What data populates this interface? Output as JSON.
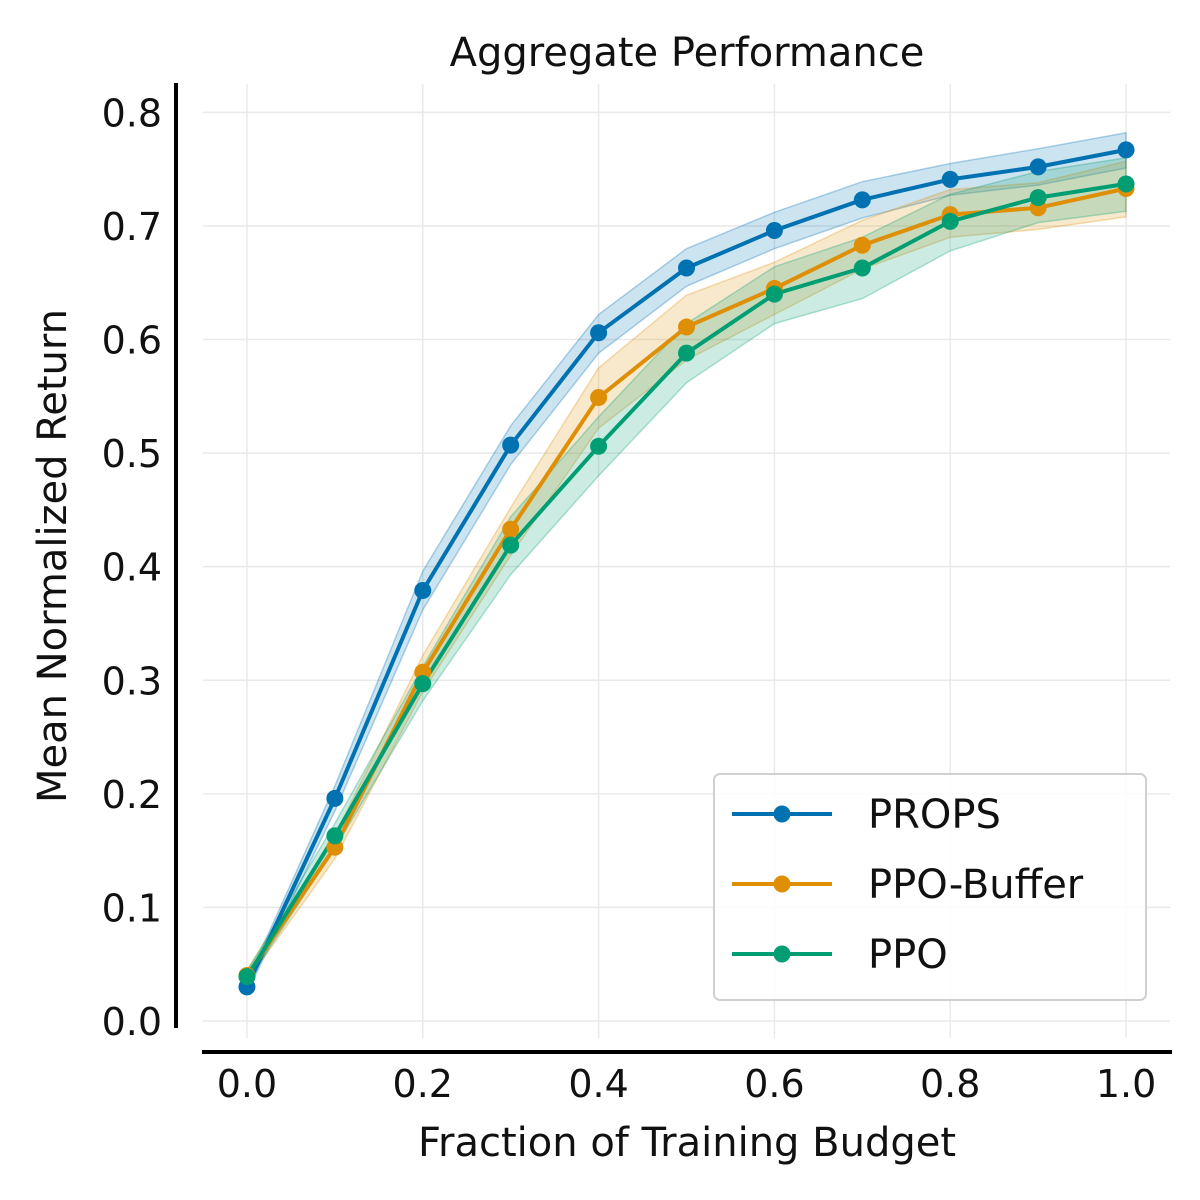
{
  "chart_data": {
    "type": "line",
    "title": "Aggregate Performance",
    "xlabel": "Fraction of Training Budget",
    "ylabel": "Mean Normalized Return",
    "xlim": [
      -0.05,
      1.05
    ],
    "ylim": [
      -0.015,
      0.825
    ],
    "xticks": [
      0.0,
      0.2,
      0.4,
      0.6,
      0.8,
      1.0
    ],
    "xtick_labels": [
      "0.0",
      "0.2",
      "0.4",
      "0.6",
      "0.8",
      "1.0"
    ],
    "yticks": [
      0.0,
      0.1,
      0.2,
      0.3,
      0.4,
      0.5,
      0.6,
      0.7,
      0.8
    ],
    "ytick_labels": [
      "0.0",
      "0.1",
      "0.2",
      "0.3",
      "0.4",
      "0.5",
      "0.6",
      "0.7",
      "0.8"
    ],
    "grid": true,
    "legend_position": "bottom-right",
    "x": [
      0.0,
      0.1,
      0.2,
      0.3,
      0.4,
      0.5,
      0.6,
      0.7,
      0.8,
      0.9,
      1.0
    ],
    "series": [
      {
        "name": "PROPS",
        "color": "#0072b2",
        "values": [
          0.03,
          0.196,
          0.379,
          0.507,
          0.606,
          0.663,
          0.696,
          0.723,
          0.741,
          0.752,
          0.767
        ],
        "lower": [
          0.025,
          0.185,
          0.362,
          0.49,
          0.588,
          0.647,
          0.68,
          0.707,
          0.727,
          0.736,
          0.751
        ],
        "upper": [
          0.035,
          0.207,
          0.396,
          0.524,
          0.622,
          0.68,
          0.712,
          0.739,
          0.755,
          0.768,
          0.782
        ]
      },
      {
        "name": "PPO-Buffer",
        "color": "#de8f05",
        "values": [
          0.04,
          0.153,
          0.307,
          0.433,
          0.549,
          0.611,
          0.645,
          0.683,
          0.71,
          0.716,
          0.733
        ],
        "lower": [
          0.035,
          0.143,
          0.29,
          0.41,
          0.522,
          0.582,
          0.622,
          0.662,
          0.69,
          0.697,
          0.708
        ],
        "upper": [
          0.045,
          0.163,
          0.322,
          0.452,
          0.575,
          0.639,
          0.668,
          0.705,
          0.732,
          0.738,
          0.757
        ]
      },
      {
        "name": "PPO",
        "color": "#029e73",
        "values": [
          0.039,
          0.163,
          0.297,
          0.419,
          0.506,
          0.588,
          0.64,
          0.663,
          0.704,
          0.725,
          0.737
        ],
        "lower": [
          0.034,
          0.152,
          0.282,
          0.393,
          0.48,
          0.562,
          0.614,
          0.636,
          0.678,
          0.703,
          0.713
        ],
        "upper": [
          0.044,
          0.174,
          0.312,
          0.444,
          0.532,
          0.614,
          0.664,
          0.69,
          0.728,
          0.748,
          0.76
        ]
      }
    ]
  }
}
